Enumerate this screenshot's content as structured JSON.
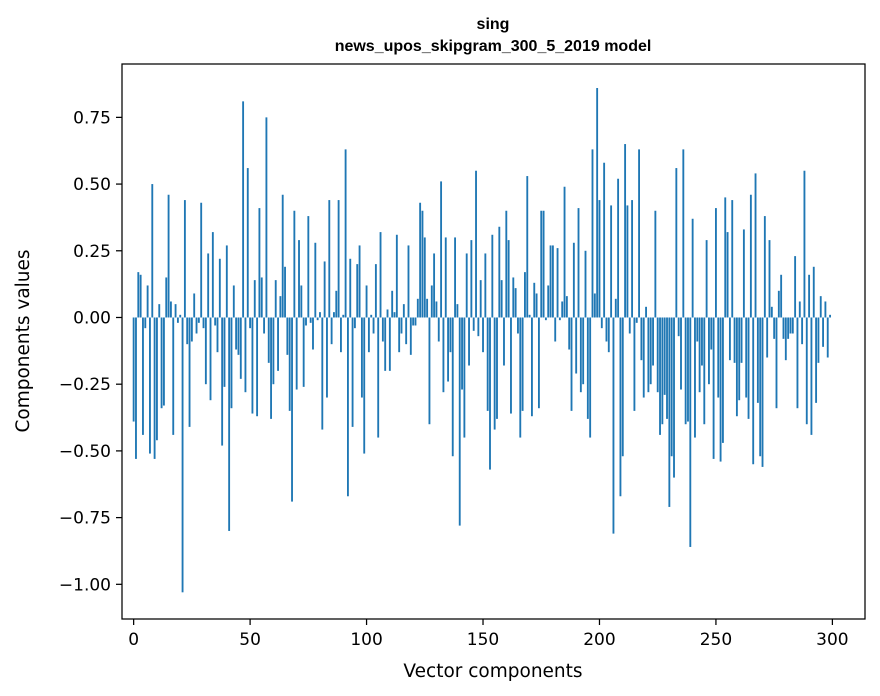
{
  "chart_data": {
    "type": "bar",
    "title": "sing",
    "subtitle": "news_upos_skipgram_300_5_2019 model",
    "xlabel": "Vector components",
    "ylabel": "Components values",
    "xlim": [
      -5,
      314
    ],
    "ylim": [
      -1.13,
      0.95
    ],
    "xticks": [
      0,
      50,
      100,
      150,
      200,
      250,
      300
    ],
    "yticks": [
      -1.0,
      -0.75,
      -0.5,
      -0.25,
      0.0,
      0.25,
      0.5,
      0.75
    ],
    "ytick_labels": [
      "−1.00",
      "−0.75",
      "−0.50",
      "−0.25",
      "0.00",
      "0.25",
      "0.50",
      "0.75"
    ],
    "color": "#1f77b4",
    "values": [
      -0.39,
      -0.53,
      0.17,
      0.16,
      -0.44,
      -0.04,
      0.12,
      -0.51,
      0.5,
      -0.53,
      -0.46,
      0.05,
      -0.34,
      -0.33,
      0.15,
      0.46,
      0.06,
      -0.44,
      0.05,
      -0.02,
      0.01,
      -1.03,
      0.44,
      -0.1,
      -0.41,
      -0.09,
      0.09,
      -0.06,
      -0.02,
      0.43,
      -0.04,
      -0.25,
      0.24,
      -0.31,
      0.32,
      -0.03,
      -0.13,
      0.22,
      -0.48,
      -0.26,
      0.27,
      -0.8,
      -0.34,
      0.12,
      -0.12,
      -0.14,
      -0.23,
      0.81,
      -0.28,
      0.56,
      -0.04,
      -0.36,
      0.14,
      -0.37,
      0.41,
      0.15,
      -0.06,
      0.75,
      -0.17,
      -0.38,
      -0.25,
      0.14,
      -0.2,
      0.08,
      0.46,
      0.19,
      -0.14,
      -0.35,
      -0.69,
      0.4,
      -0.27,
      0.29,
      0.12,
      -0.26,
      -0.03,
      0.38,
      -0.02,
      -0.12,
      0.28,
      -0.01,
      0.02,
      -0.42,
      0.21,
      -0.3,
      0.44,
      -0.1,
      0.02,
      0.1,
      0.44,
      -0.13,
      0.01,
      0.63,
      -0.67,
      0.22,
      -0.41,
      -0.04,
      0.2,
      0.27,
      -0.3,
      -0.51,
      0.12,
      -0.13,
      0.01,
      -0.06,
      0.2,
      -0.45,
      0.32,
      -0.09,
      -0.2,
      0.03,
      -0.2,
      0.1,
      0.02,
      0.31,
      -0.13,
      -0.06,
      0.05,
      -0.1,
      0.27,
      -0.14,
      -0.03,
      -0.03,
      0.07,
      0.43,
      0.4,
      0.3,
      0.07,
      -0.4,
      0.12,
      0.24,
      0.06,
      -0.09,
      0.51,
      -0.28,
      0.3,
      -0.24,
      -0.13,
      -0.52,
      0.3,
      0.05,
      -0.78,
      -0.27,
      -0.45,
      0.24,
      -0.18,
      0.29,
      -0.05,
      0.55,
      -0.07,
      0.14,
      -0.13,
      0.24,
      -0.35,
      -0.57,
      0.31,
      -0.42,
      -0.38,
      0.34,
      0.14,
      -0.18,
      0.4,
      0.29,
      -0.36,
      0.15,
      0.11,
      -0.06,
      -0.45,
      -0.35,
      0.17,
      0.53,
      0.01,
      -0.37,
      0.13,
      0.09,
      -0.34,
      0.4,
      0.4,
      -0.01,
      0.12,
      0.27,
      0.27,
      -0.09,
      0.26,
      -0.01,
      0.06,
      0.49,
      0.08,
      -0.12,
      -0.35,
      0.28,
      -0.21,
      0.41,
      -0.28,
      -0.25,
      0.25,
      -0.38,
      -0.45,
      0.63,
      0.09,
      0.86,
      0.44,
      -0.04,
      0.58,
      -0.09,
      -0.13,
      0.42,
      -0.81,
      0.07,
      0.52,
      -0.67,
      -0.52,
      0.65,
      0.42,
      -0.06,
      0.44,
      -0.35,
      -0.02,
      0.63,
      -0.16,
      -0.3,
      0.04,
      -0.28,
      -0.25,
      -0.18,
      0.4,
      -0.28,
      -0.44,
      -0.4,
      -0.29,
      -0.38,
      -0.71,
      -0.52,
      -0.6,
      0.56,
      -0.07,
      -0.27,
      0.63,
      -0.4,
      -0.39,
      -0.86,
      0.37,
      -0.45,
      -0.09,
      -0.28,
      -0.18,
      -0.4,
      0.29,
      -0.25,
      -0.12,
      -0.53,
      0.41,
      -0.3,
      -0.54,
      -0.47,
      0.45,
      0.32,
      -0.16,
      0.44,
      -0.17,
      -0.37,
      -0.31,
      -0.17,
      0.33,
      -0.3,
      -0.38,
      0.46,
      -0.55,
      0.54,
      -0.32,
      -0.52,
      -0.56,
      0.38,
      -0.15,
      0.29,
      0.04,
      -0.08,
      -0.34,
      0.1,
      0.16,
      -0.08,
      -0.16,
      -0.08,
      -0.06,
      -0.06,
      0.23,
      -0.34,
      0.06,
      -0.1,
      0.55,
      -0.4,
      0.16,
      -0.44,
      0.19,
      -0.32,
      -0.17,
      0.08,
      -0.11,
      0.06,
      -0.15,
      0.01
    ]
  }
}
